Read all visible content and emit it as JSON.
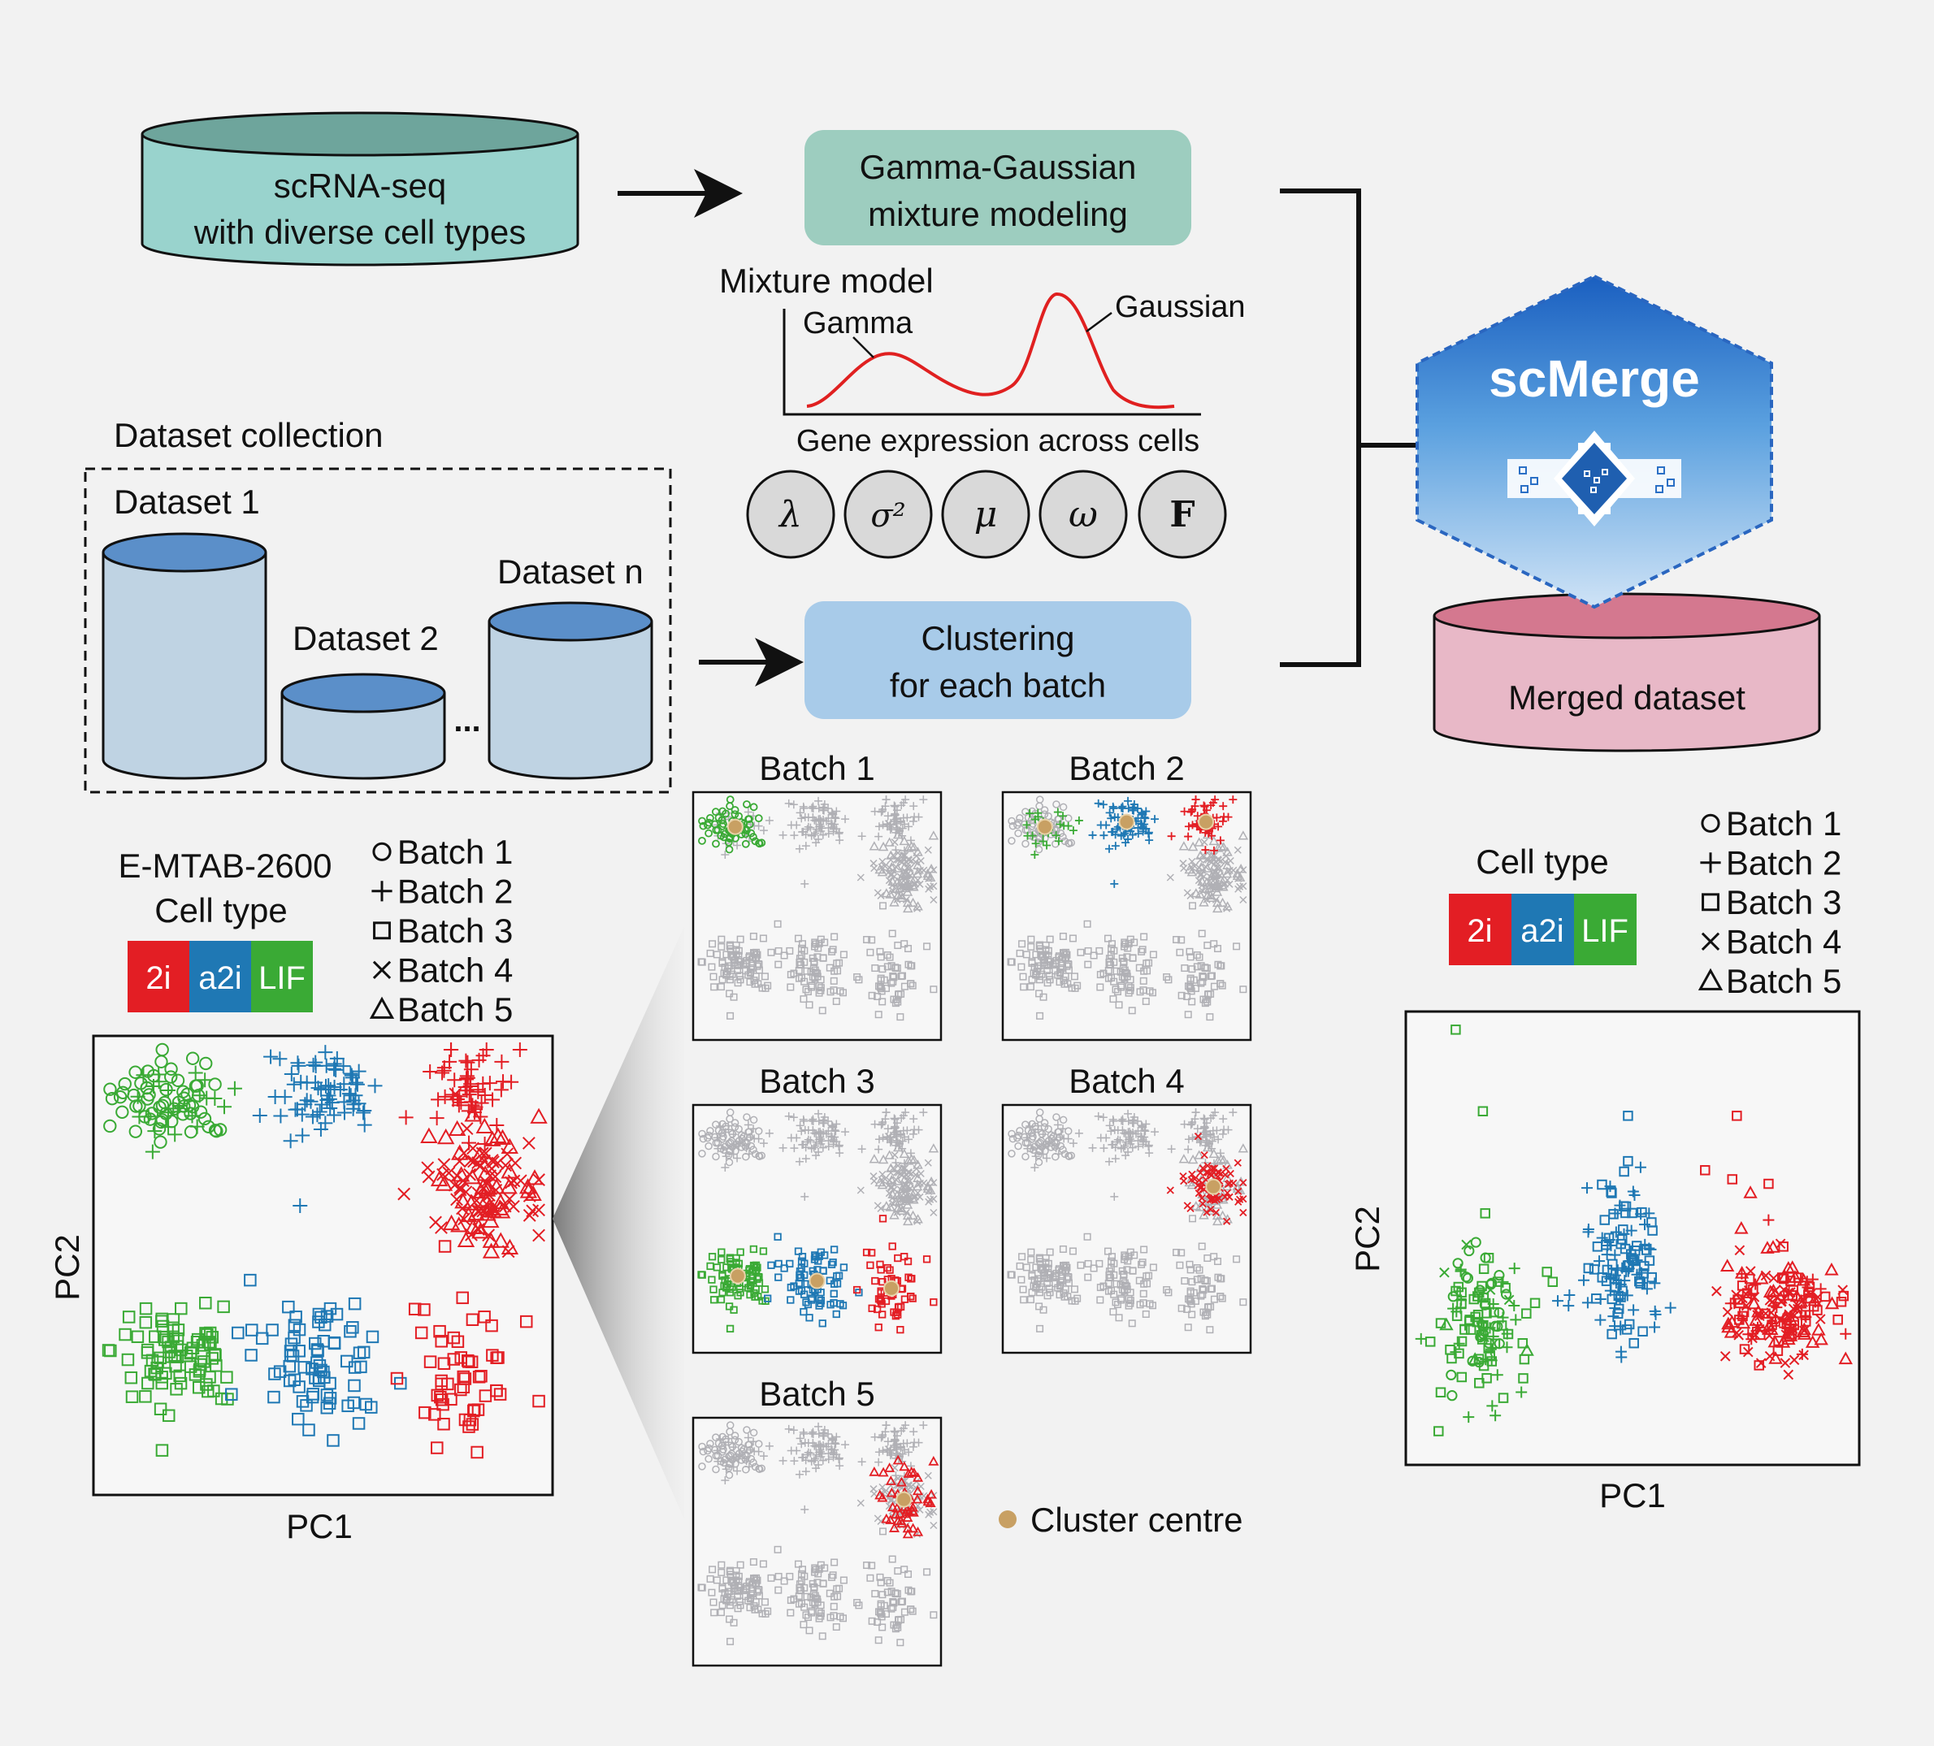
{
  "source": {
    "title": "scRNA-seq",
    "subtitle": "with diverse cell types"
  },
  "gg_box": {
    "line1": "Gamma-Gaussian",
    "line2": "mixture modeling"
  },
  "mixture": {
    "title": "Mixture model",
    "gamma_label": "Gamma",
    "gaussian_label": "Gaussian",
    "xlabel": "Gene expression across cells",
    "curve_color": "#e02020"
  },
  "params": [
    "λ",
    "σ²",
    "μ",
    "ω",
    "F"
  ],
  "collection": {
    "title": "Dataset collection",
    "d1": "Dataset 1",
    "d2": "Dataset 2",
    "dn": "Dataset n",
    "ellipsis": "..."
  },
  "cluster_box": {
    "line1": "Clustering",
    "line2": "for each batch"
  },
  "scmerge": {
    "logo": "scMerge"
  },
  "merged": {
    "label": "Merged dataset"
  },
  "left_plot": {
    "dataset": "E-MTAB-2600",
    "cell_type_label": "Cell type",
    "xlabel": "PC1",
    "ylabel": "PC2"
  },
  "right_plot": {
    "cell_type_label": "Cell type",
    "xlabel": "PC1",
    "ylabel": "PC2"
  },
  "cell_types": [
    {
      "name": "2i",
      "color": "#e31e24"
    },
    {
      "name": "a2i",
      "color": "#1f78b4"
    },
    {
      "name": "LIF",
      "color": "#3aaa35"
    }
  ],
  "batches": [
    {
      "name": "Batch 1",
      "marker": "circle"
    },
    {
      "name": "Batch 2",
      "marker": "plus"
    },
    {
      "name": "Batch 3",
      "marker": "square"
    },
    {
      "name": "Batch 4",
      "marker": "cross"
    },
    {
      "name": "Batch 5",
      "marker": "triangle"
    }
  ],
  "batch_panels": [
    "Batch 1",
    "Batch 2",
    "Batch 3",
    "Batch 4",
    "Batch 5"
  ],
  "cluster_centre": {
    "label": "Cluster centre",
    "color": "#c8a063"
  },
  "colors": {
    "background": "#f2f2f2",
    "source_db": "#99d3cd",
    "gg_box": "#9dcdbf",
    "dataset_db": "#bfd3e3",
    "dataset_top": "#5b8fc9",
    "cluster_box": "#a8cbe9",
    "merged_db": "#e8b8c7",
    "merged_top": "#d4788f",
    "param_fill": "#d9d9d9",
    "grey_points": "#b0b0b5"
  },
  "chart_data": [
    {
      "type": "scatter",
      "name_in_figure": "E-MTAB-2600",
      "xlabel": "PC1",
      "ylabel": "PC2",
      "series": [
        {
          "cell_type": "LIF",
          "batch": "Batch 1",
          "cluster": "top-left"
        },
        {
          "cell_type": "a2i",
          "batch": "Batch 2",
          "cluster": "top-middle"
        },
        {
          "cell_type": "2i",
          "batch": "Batch 2",
          "cluster": "top-right"
        },
        {
          "cell_type": "2i",
          "batch": "Batch 4",
          "cluster": "top-right"
        },
        {
          "cell_type": "2i",
          "batch": "Batch 5",
          "cluster": "top-right"
        },
        {
          "cell_type": "LIF",
          "batch": "Batch 3",
          "cluster": "bottom-left"
        },
        {
          "cell_type": "a2i",
          "batch": "Batch 3",
          "cluster": "bottom-middle"
        },
        {
          "cell_type": "2i",
          "batch": "Batch 3",
          "cluster": "bottom-right"
        }
      ]
    },
    {
      "type": "scatter",
      "name_in_figure": "Merged dataset",
      "xlabel": "PC1",
      "ylabel": "PC2",
      "series": [
        {
          "cell_type": "LIF",
          "cluster": "left"
        },
        {
          "cell_type": "a2i",
          "cluster": "middle"
        },
        {
          "cell_type": "2i",
          "cluster": "right"
        }
      ]
    }
  ]
}
